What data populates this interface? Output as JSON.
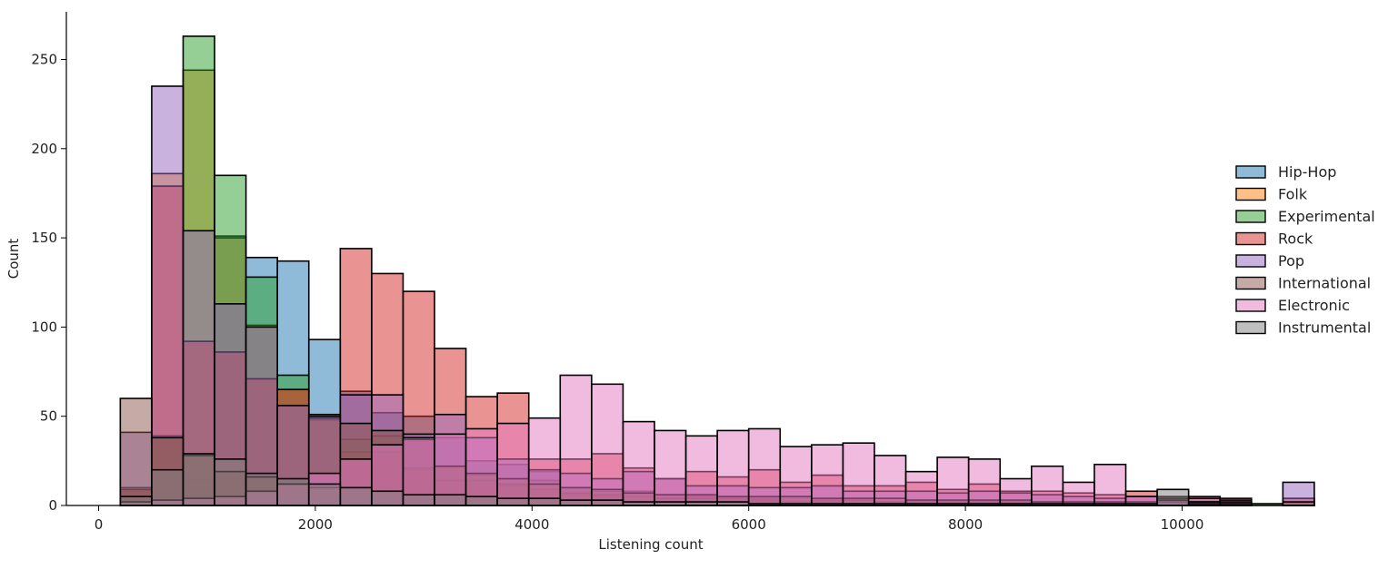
{
  "chart_data": {
    "type": "bar",
    "subtype": "overlapping-histogram",
    "xlabel": "Listening count",
    "ylabel": "Count",
    "xlim": [
      -500,
      10500
    ],
    "ylim": [
      0,
      276
    ],
    "xticks": [
      "0",
      "2000",
      "4000",
      "6000",
      "8000",
      "10000"
    ],
    "yticks": [
      "0",
      "50",
      "100",
      "150",
      "200",
      "250"
    ],
    "legend_position": "right",
    "bin_start": 200,
    "bin_width": 290,
    "series": [
      {
        "name": "Hip-Hop",
        "color": "#1f77b4",
        "values": [
          9,
          39,
          14,
          151,
          139,
          137,
          93,
          64,
          52,
          50,
          38,
          25,
          23,
          19,
          10,
          8,
          8,
          6,
          5,
          5,
          4,
          5,
          3,
          3,
          2,
          3,
          2,
          2,
          2,
          1,
          1,
          1,
          1,
          1,
          0,
          0,
          0,
          0
        ]
      },
      {
        "name": "Folk",
        "color": "#ff7f0e",
        "values": [
          10,
          186,
          244,
          150,
          101,
          65,
          48,
          30,
          30,
          20,
          14,
          14,
          11,
          9,
          6,
          5,
          5,
          4,
          3,
          3,
          2,
          2,
          2,
          1,
          1,
          1,
          1,
          1,
          1,
          0,
          1,
          0,
          1,
          0,
          0,
          0,
          0,
          0
        ]
      },
      {
        "name": "Experimental",
        "color": "#2ca02c",
        "values": [
          9,
          39,
          263,
          185,
          128,
          73,
          51,
          37,
          39,
          21,
          22,
          17,
          12,
          14,
          7,
          6,
          7,
          4,
          4,
          4,
          3,
          5,
          3,
          3,
          2,
          2,
          2,
          2,
          2,
          1,
          1,
          1,
          1,
          1,
          0,
          1,
          1,
          0
        ]
      },
      {
        "name": "Rock",
        "color": "#d62728",
        "values": [
          9,
          179,
          92,
          86,
          71,
          65,
          49,
          144,
          130,
          120,
          88,
          61,
          63,
          26,
          26,
          29,
          21,
          15,
          19,
          16,
          20,
          13,
          17,
          11,
          11,
          13,
          9,
          12,
          8,
          8,
          7,
          6,
          8,
          5,
          5,
          4,
          0,
          4
        ]
      },
      {
        "name": "Pop",
        "color": "#9467bd",
        "values": [
          41,
          235,
          154,
          113,
          100,
          56,
          50,
          62,
          62,
          40,
          51,
          38,
          26,
          20,
          18,
          15,
          19,
          15,
          11,
          11,
          10,
          10,
          11,
          8,
          8,
          8,
          7,
          8,
          7,
          6,
          5,
          4,
          5,
          4,
          4,
          3,
          0,
          13
        ]
      },
      {
        "name": "International",
        "color": "#8c564b",
        "values": [
          60,
          38,
          28,
          19,
          16,
          12,
          10,
          46,
          42,
          37,
          22,
          18,
          15,
          12,
          10,
          9,
          7,
          6,
          6,
          5,
          5,
          5,
          4,
          4,
          4,
          3,
          3,
          3,
          3,
          2,
          2,
          2,
          2,
          2,
          2,
          2,
          0,
          2
        ]
      },
      {
        "name": "Electronic",
        "color": "#e377c2",
        "values": [
          2,
          3,
          4,
          5,
          8,
          12,
          18,
          26,
          34,
          38,
          40,
          43,
          46,
          49,
          73,
          68,
          47,
          42,
          39,
          42,
          43,
          33,
          34,
          35,
          28,
          19,
          27,
          26,
          15,
          22,
          13,
          23,
          5,
          3,
          2,
          1,
          0,
          0
        ]
      },
      {
        "name": "Instrumental",
        "color": "#7f7f7f",
        "values": [
          5,
          20,
          29,
          26,
          18,
          15,
          12,
          10,
          8,
          6,
          6,
          5,
          4,
          4,
          3,
          3,
          2,
          2,
          2,
          2,
          1,
          1,
          1,
          1,
          1,
          1,
          1,
          1,
          1,
          1,
          1,
          1,
          1,
          9,
          1,
          0,
          0,
          0
        ]
      }
    ]
  }
}
